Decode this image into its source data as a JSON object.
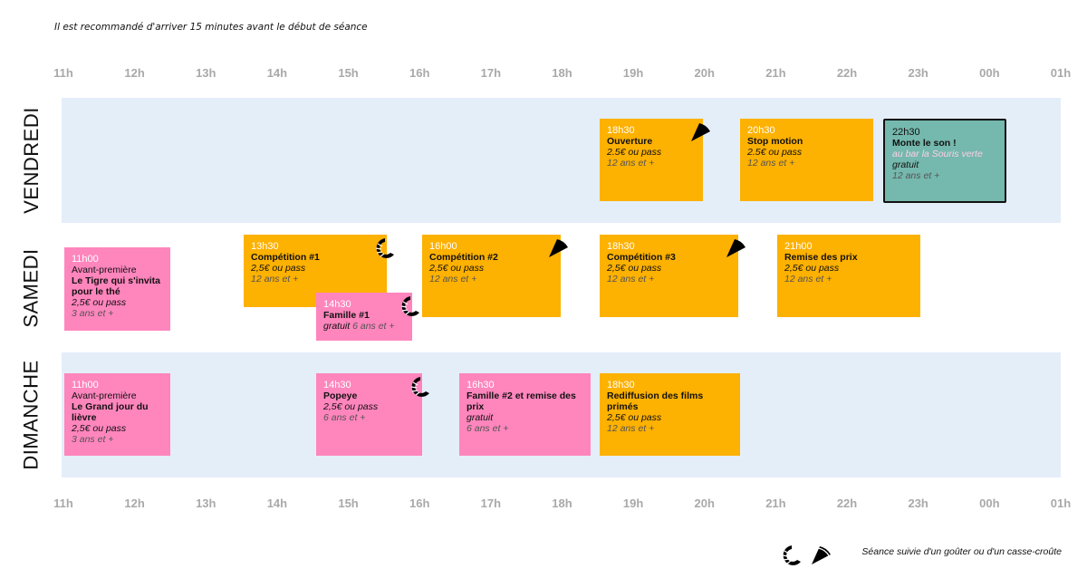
{
  "note": "Il est recommandé d'arriver 15 minutes avant le début de séance",
  "hours": [
    "11h",
    "12h",
    "13h",
    "14h",
    "15h",
    "16h",
    "17h",
    "18h",
    "19h",
    "20h",
    "21h",
    "22h",
    "23h",
    "00h",
    "01h"
  ],
  "days": [
    "VENDREDI",
    "SAMEDI",
    "DIMANCHE"
  ],
  "events": [
    {
      "time": "18h30",
      "title": "Ouverture",
      "price": "2.5€ ou pass",
      "age": "12 ans et +"
    },
    {
      "time": "20h30",
      "title": "Stop motion",
      "price": "2.5€ ou pass",
      "age": "12 ans et +"
    },
    {
      "time": "22h30",
      "title": "Monte le son !",
      "venue": "au bar la Souris verte",
      "price": "gratuit",
      "age": "12 ans et +"
    },
    {
      "time": "11h00",
      "pre": "Avant-première",
      "title": "Le Tigre qui s'invita pour le thé",
      "price": "2,5€ ou pass",
      "age": "3 ans et +"
    },
    {
      "time": "13h30",
      "title": "Compétition #1",
      "price": "2,5€ ou pass",
      "age": "12 ans et +"
    },
    {
      "time": "14h30",
      "title": "Famille #1",
      "price": "gratuit",
      "age": "6 ans et +"
    },
    {
      "time": "16h00",
      "title": "Compétition #2",
      "price": "2,5€ ou pass",
      "age": "12 ans et +"
    },
    {
      "time": "18h30",
      "title": "Compétition #3",
      "price": "2,5€ ou pass",
      "age": "12 ans et +"
    },
    {
      "time": "21h00",
      "title": "Remise des prix",
      "price": "2,5€ ou pass",
      "age": "12 ans et +"
    },
    {
      "time": "11h00",
      "pre": "Avant-première",
      "title": "Le Grand jour du lièvre",
      "price": "2,5€ ou pass",
      "age": "3 ans et +"
    },
    {
      "time": "14h30",
      "title": "Popeye",
      "price": "2,5€ ou pass",
      "age": "6 ans et +"
    },
    {
      "time": "16h30",
      "title": "Famille #2 et remise des prix",
      "price": "gratuit",
      "age": "6 ans et +"
    },
    {
      "time": "18h30",
      "title": "Rediffusion des films primés",
      "price": "2,5€ ou pass",
      "age": "12 ans et +"
    }
  ],
  "legend": "Séance suivie d'un goûter ou d'un casse-croûte",
  "colors": {
    "orange": "#fdb100",
    "pink": "#ff85bd",
    "teal": "#75b8ad",
    "band": "#e4eef9"
  }
}
